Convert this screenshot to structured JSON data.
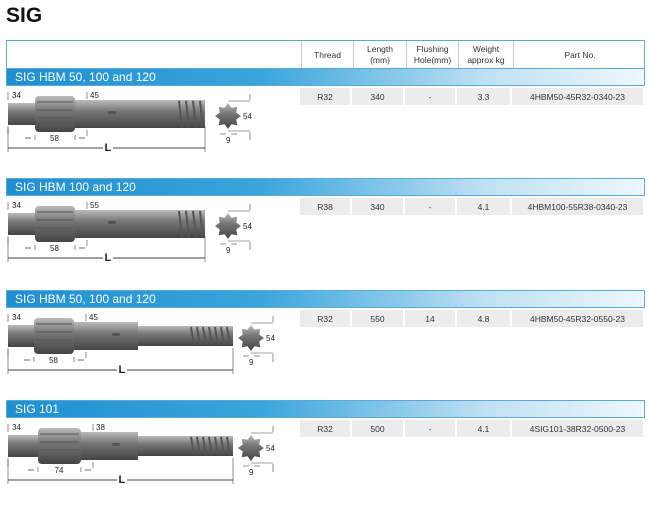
{
  "title": "SIG",
  "headers": {
    "thread": "Thread",
    "length": "Length\n(mm)",
    "flushing": "Flushing\nHole(mm)",
    "weight": "Weight\napprox kg",
    "part": "Part No."
  },
  "colors": {
    "band": "#1f8fd0",
    "row_bg": "#ececec"
  },
  "sections": [
    {
      "name": "SIG HBM 50, 100 and 120",
      "thread": "R32",
      "length": "340",
      "flushing": "-",
      "weight": "3.3",
      "part": "4HBM50-45R32-0340-23",
      "dims": {
        "shank": "34",
        "body": "45",
        "spline": "58",
        "overall": "L",
        "bit": "54",
        "gap": "9"
      }
    },
    {
      "name": "SIG HBM 100 and 120",
      "thread": "R38",
      "length": "340",
      "flushing": "-",
      "weight": "4.1",
      "part": "4HBM100-55R38-0340-23",
      "dims": {
        "shank": "34",
        "body": "55",
        "spline": "58",
        "overall": "L",
        "bit": "54",
        "gap": "9"
      }
    },
    {
      "name": "SIG HBM 50, 100 and 120",
      "thread": "R32",
      "length": "550",
      "flushing": "14",
      "weight": "4.8",
      "part": "4HBM50-45R32-0550-23",
      "dims": {
        "shank": "34",
        "body": "45",
        "spline": "58",
        "overall": "L",
        "bit": "54",
        "gap": "9"
      }
    },
    {
      "name": "SIG 101",
      "thread": "R32",
      "length": "500",
      "flushing": "-",
      "weight": "4.1",
      "part": "4SIG101-38R32-0500-23",
      "dims": {
        "shank": "34",
        "body": "38",
        "spline": "74",
        "overall": "L",
        "bit": "54",
        "gap": "9"
      }
    }
  ]
}
